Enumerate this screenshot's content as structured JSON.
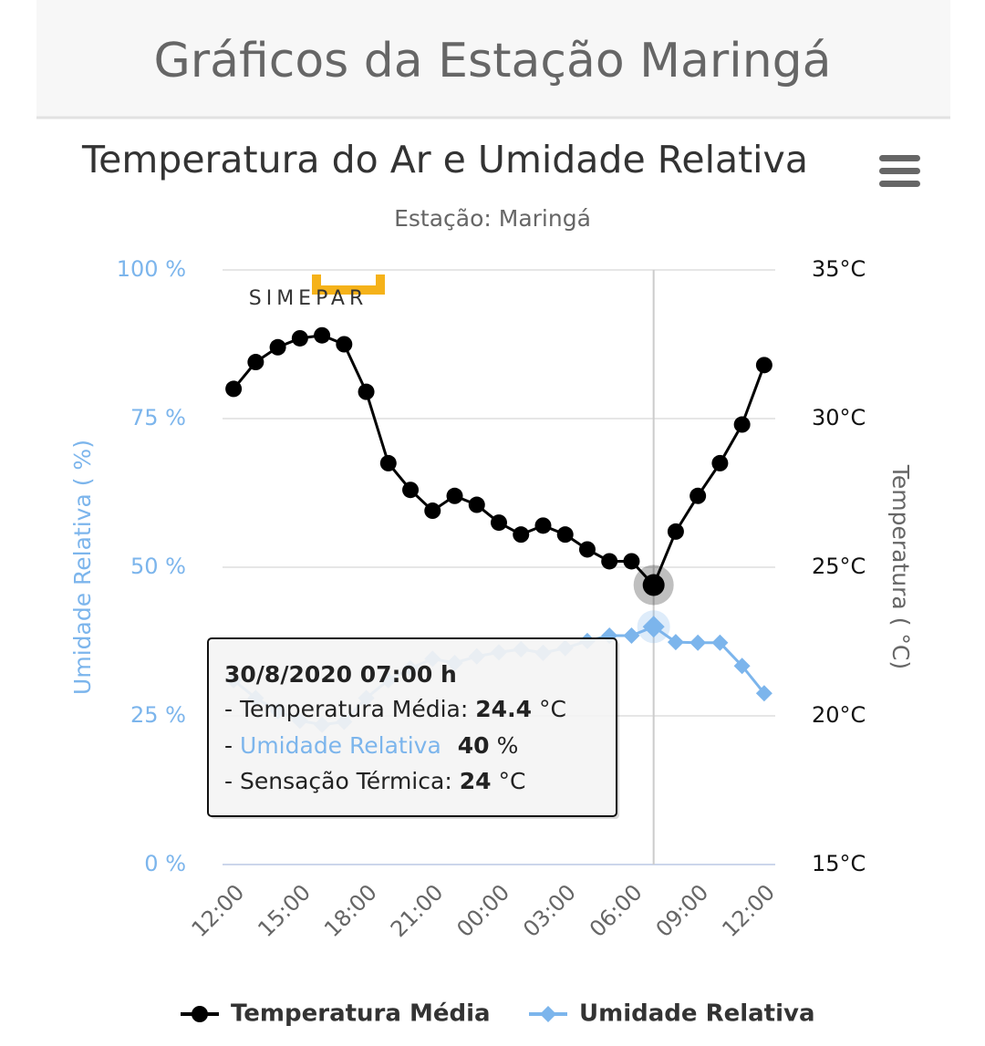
{
  "header": {
    "title": "Gráficos da Estação Maringá"
  },
  "chart_data": {
    "type": "line",
    "title": "Temperatura do Ar e Umidade Relativa",
    "subtitle": "Estação: Maringá",
    "logo": "SIMEPAR",
    "categories": [
      "12:00",
      null,
      null,
      "15:00",
      null,
      null,
      "18:00",
      null,
      null,
      "21:00",
      null,
      null,
      "00:00",
      null,
      null,
      "03:00",
      null,
      null,
      "06:00",
      null,
      null,
      "09:00",
      null,
      null,
      "12:00"
    ],
    "ylabel": "Umidade Relativa ( %)",
    "y2label": "Temperatura ( °C)",
    "ylim": [
      0,
      100
    ],
    "yticks": [
      {
        "value": 0,
        "label": "0 %"
      },
      {
        "value": 25,
        "label": "25 %"
      },
      {
        "value": 50,
        "label": "50 %"
      },
      {
        "value": 75,
        "label": "75 %"
      },
      {
        "value": 100,
        "label": "100 %"
      }
    ],
    "y2lim": [
      15,
      35
    ],
    "y2ticks": [
      {
        "value": 15,
        "label": "15°C"
      },
      {
        "value": 20,
        "label": "20°C"
      },
      {
        "value": 25,
        "label": "25°C"
      },
      {
        "value": 30,
        "label": "30°C"
      },
      {
        "value": 35,
        "label": "35°C"
      }
    ],
    "grid": true,
    "legend": "bottom",
    "series": [
      {
        "name": "Temperatura Média",
        "color": "#000000",
        "axis": "y2",
        "marker": "circle",
        "values": [
          31.0,
          31.9,
          32.4,
          32.7,
          32.8,
          32.5,
          30.9,
          28.5,
          27.6,
          26.9,
          27.4,
          27.1,
          26.5,
          26.1,
          26.4,
          26.1,
          25.6,
          25.2,
          25.2,
          24.4,
          26.2,
          27.4,
          28.5,
          29.8,
          31.8
        ]
      },
      {
        "name": "Umidade Relativa",
        "color": "#7cb5ec",
        "marker": "diamond",
        "values": [
          31,
          28,
          25.8,
          24.2,
          23.5,
          24,
          28,
          31,
          33,
          34.6,
          33.9,
          35,
          35.7,
          36.2,
          35.6,
          36.4,
          37.6,
          38.5,
          38.5,
          40,
          37.4,
          37.3,
          37.3,
          33.4,
          28.8
        ]
      }
    ],
    "highlight_index": 19,
    "tooltip": {
      "title": "30/8/2020 07:00 h",
      "temp_label": "- Temperatura Média:",
      "temp_unit": "°C",
      "hum_prefix": "-",
      "hum_unit": "%",
      "feel_label": "- Sensação Térmica:",
      "feel_value": 24,
      "feel_unit": "°C"
    }
  }
}
